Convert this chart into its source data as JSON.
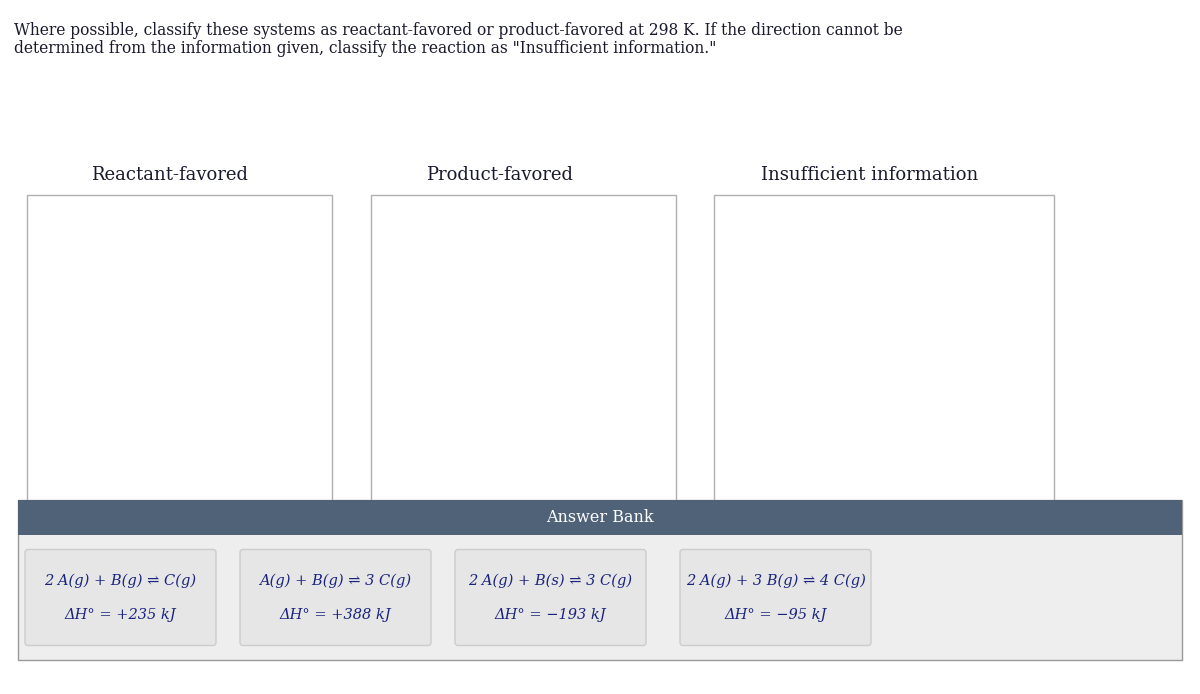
{
  "title_line1": "Where possible, classify these systems as reactant-favored or product-favored at 298 K. If the direction cannot be",
  "title_line2": "determined from the information given, classify the reaction as \"Insufficient information.\"",
  "columns": [
    "Reactant-favored",
    "Product-favored",
    "Insufficient information"
  ],
  "answer_bank_label": "Answer Bank",
  "answer_bank_bg": "#4f6278",
  "answer_bank_text_color": "#ffffff",
  "card_items": [
    {
      "line1": "2 A(g) + B(g) ⇌ C(g)",
      "line2": "ΔH° = +235 kJ"
    },
    {
      "line1": "A(g) + B(g) ⇌ 3 C(g)",
      "line2": "ΔH° = +388 kJ"
    },
    {
      "line1": "2 A(g) + B(s) ⇌ 3 C(g)",
      "line2": "ΔH° = −193 kJ"
    },
    {
      "line1": "2 A(g) + 3 B(g) ⇌ 4 C(g)",
      "line2": "ΔH° = −95 kJ"
    }
  ],
  "bg_color": "#ffffff",
  "box_facecolor": "#ffffff",
  "box_edgecolor": "#b0b0b0",
  "card_bg": "#e6e6e6",
  "card_edge_color": "#cccccc",
  "answer_section_bg": "#eeeeee",
  "answer_section_edge": "#999999",
  "text_color": "#1a1a2e",
  "card_text_color": "#1a237e",
  "col_label_color": "#1a1a2e"
}
